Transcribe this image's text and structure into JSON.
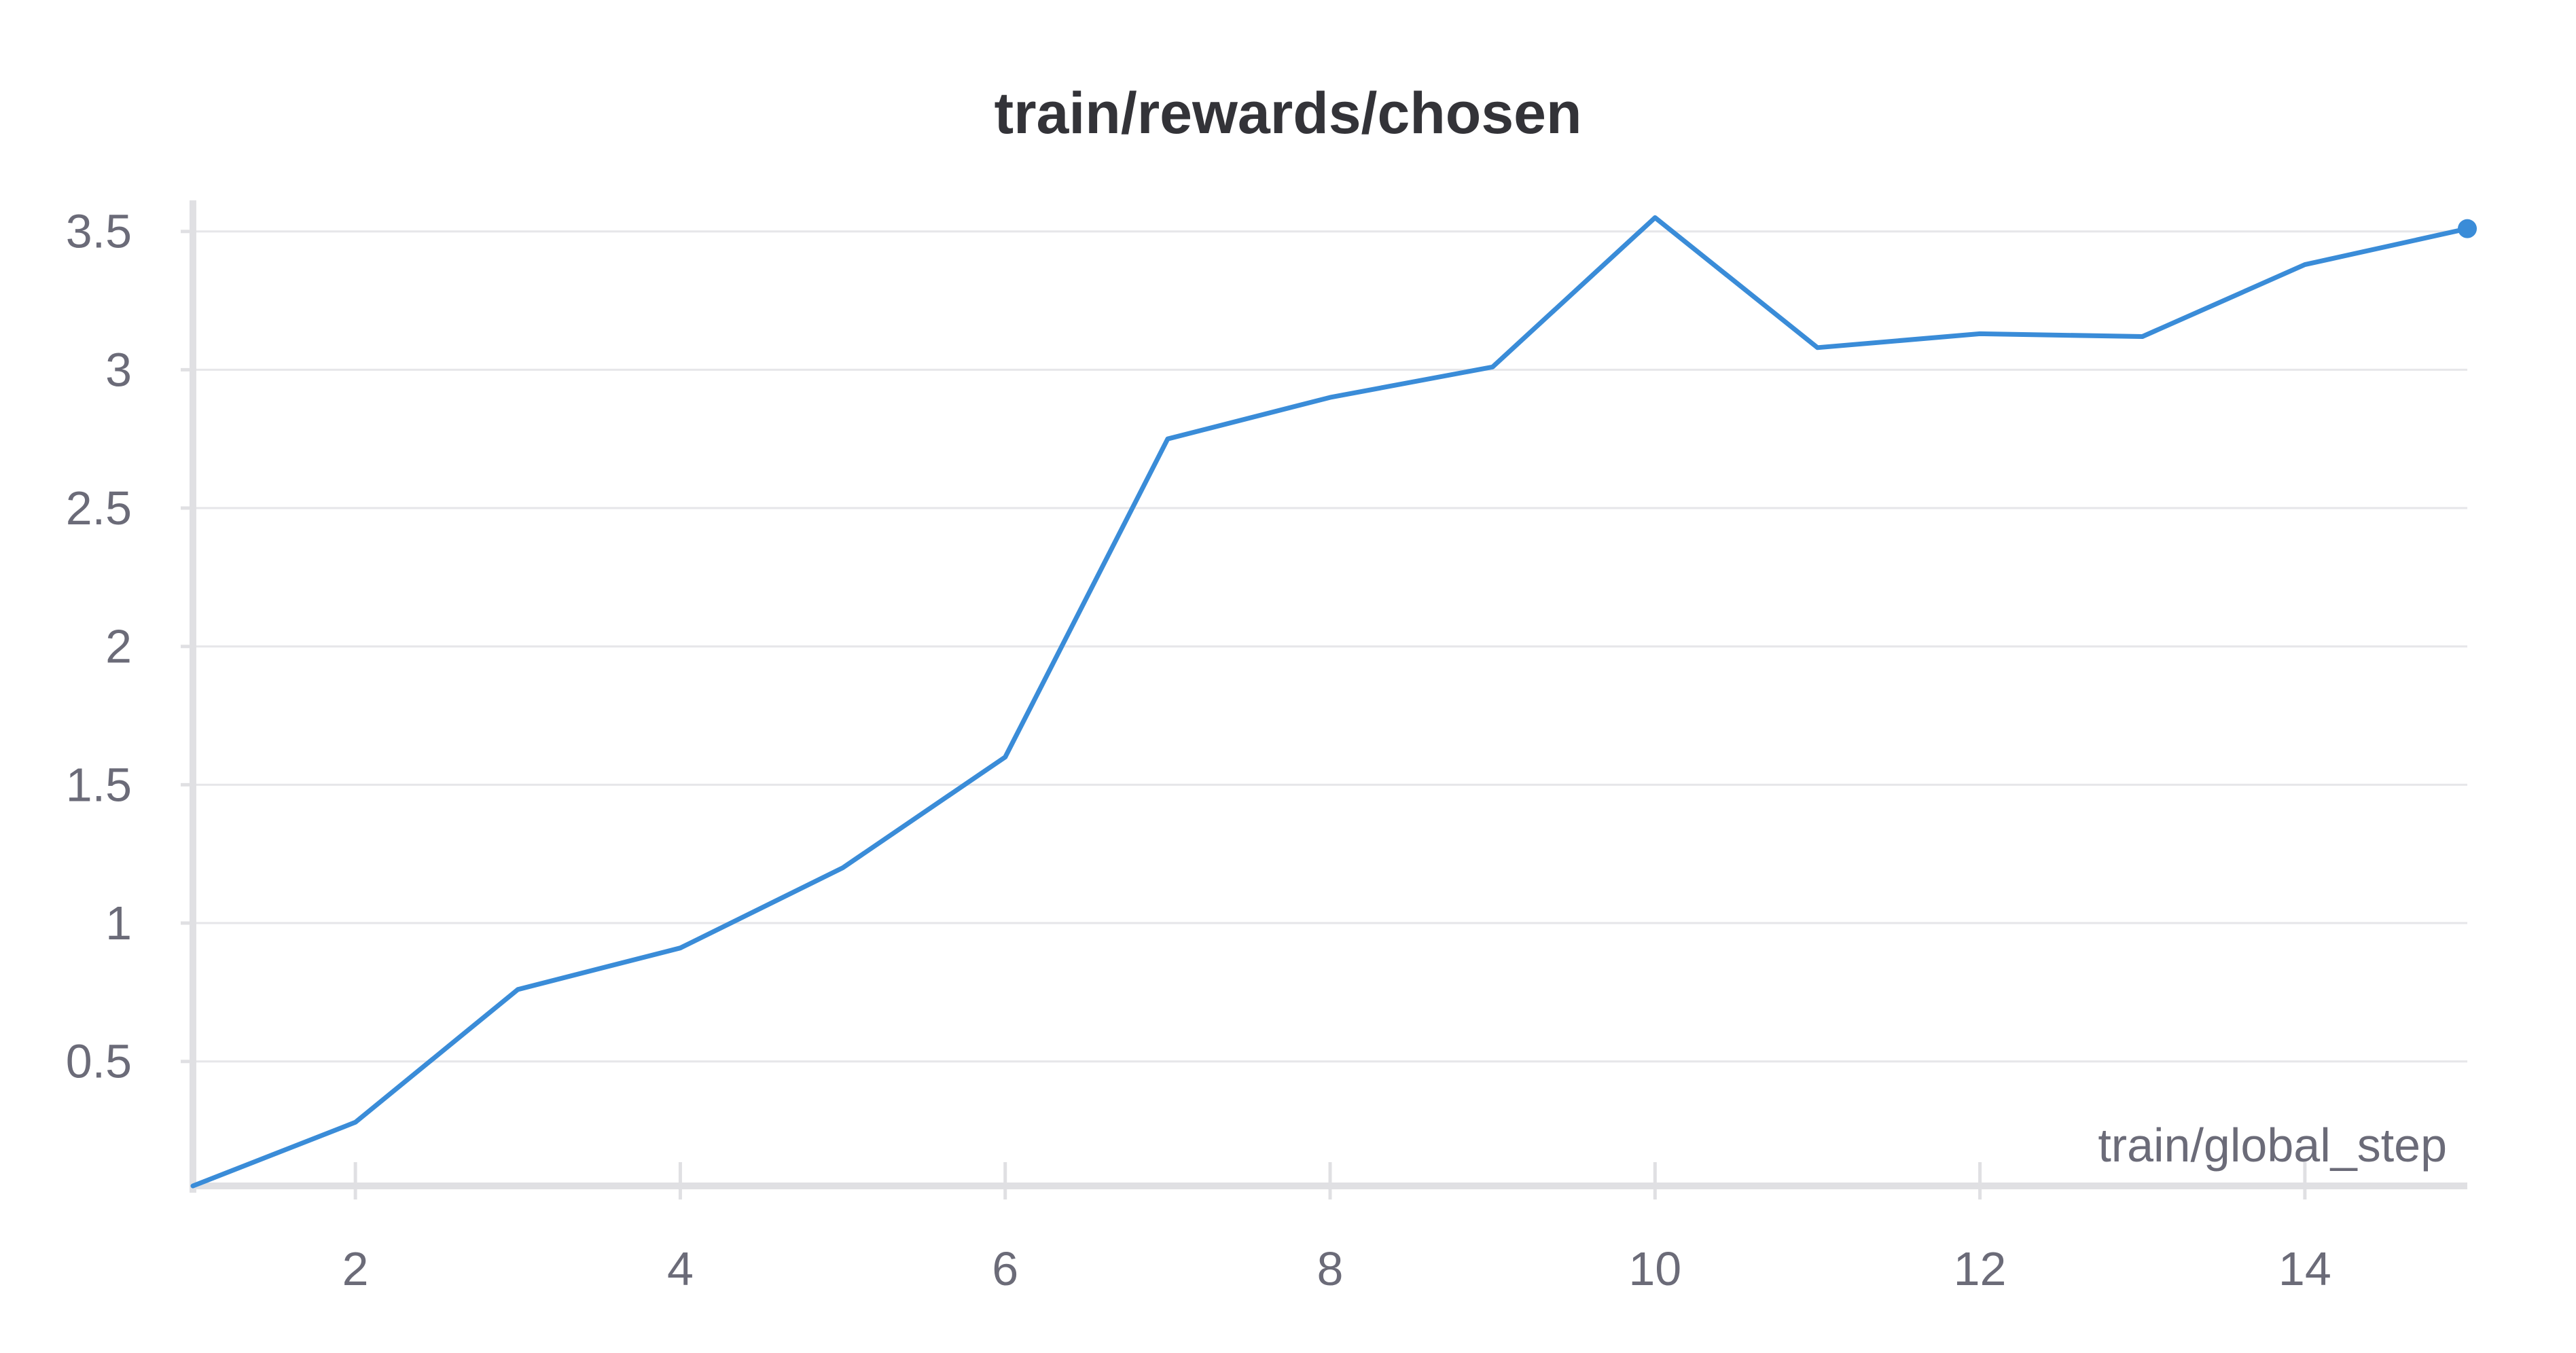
{
  "chart_data": {
    "type": "line",
    "title": "train/rewards/chosen",
    "xlabel": "train/global_step",
    "ylabel": "",
    "xlim": [
      1,
      15
    ],
    "ylim": [
      0.05,
      3.6
    ],
    "x_ticks": [
      2,
      4,
      6,
      8,
      10,
      12,
      14
    ],
    "y_ticks": [
      0.5,
      1,
      1.5,
      2,
      2.5,
      3,
      3.5
    ],
    "y_tick_labels": [
      "0.5",
      "1",
      "1.5",
      "2",
      "2.5",
      "3",
      "3.5"
    ],
    "grid": true,
    "legend": "none",
    "series": [
      {
        "x": [
          1,
          2,
          3,
          4,
          5,
          6,
          7,
          8,
          9,
          10,
          11,
          12,
          13,
          14,
          15
        ],
        "values": [
          0.05,
          0.28,
          0.76,
          0.91,
          1.2,
          1.6,
          2.75,
          2.9,
          3.01,
          3.55,
          3.08,
          3.13,
          3.12,
          3.38,
          3.51
        ],
        "color": "#3a8cd8"
      }
    ],
    "colors": {
      "line": "#3a8cd8",
      "grid": "#e6e6e9",
      "axis": "#e0e0e3"
    }
  }
}
